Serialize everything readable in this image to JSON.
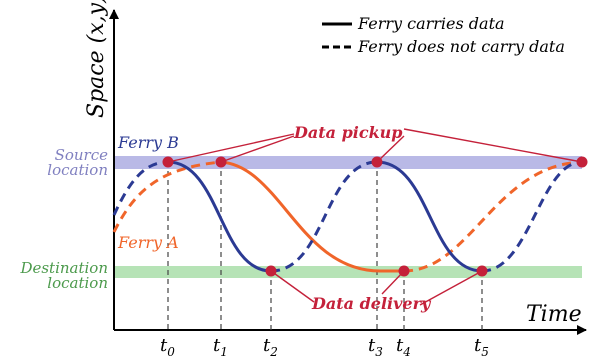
{
  "legend": {
    "solid_label": "Ferry carries data",
    "dashed_label": "Ferry does not carry data"
  },
  "axes": {
    "y_label": "Space (x,y)",
    "x_label": "Time"
  },
  "bands": {
    "source_line1": "Source",
    "source_line2": "location",
    "destination_line1": "Destination",
    "destination_line2": "location"
  },
  "ferries": {
    "a": {
      "label": "Ferry A",
      "color": "#f0652a"
    },
    "b": {
      "label": "Ferry B",
      "color": "#2b3a93"
    }
  },
  "annotations": {
    "pickup": "Data pickup",
    "delivery": "Data delivery",
    "annotation_color": "#c4213a"
  },
  "times": [
    {
      "base": "t",
      "sub": "0"
    },
    {
      "base": "t",
      "sub": "1"
    },
    {
      "base": "t",
      "sub": "2"
    },
    {
      "base": "t",
      "sub": "3"
    },
    {
      "base": "t",
      "sub": "4"
    },
    {
      "base": "t",
      "sub": "5"
    }
  ],
  "colors": {
    "source_band": "#b9b9e6",
    "destination_band": "#b6e3b6",
    "source_text": "#8080c0",
    "destination_text": "#4c9a4c"
  }
}
